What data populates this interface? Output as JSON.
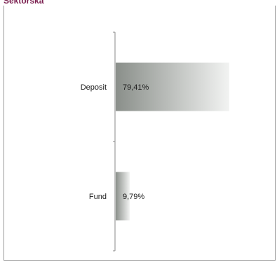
{
  "header": {
    "title": "Sektorska"
  },
  "chart_data": {
    "type": "bar",
    "orientation": "horizontal",
    "categories": [
      "Deposit",
      "Fund"
    ],
    "values": [
      79.41,
      9.79
    ],
    "value_labels": [
      "79,41%",
      "9,79%"
    ],
    "title": "",
    "xlabel": "",
    "ylabel": "",
    "xlim": [
      0,
      100
    ],
    "grid": false,
    "legend": "none",
    "colors": {
      "bar_dark": "#8a8f8a",
      "bar_light": "#f2f3f2",
      "axis": "#8a8a8a"
    }
  }
}
